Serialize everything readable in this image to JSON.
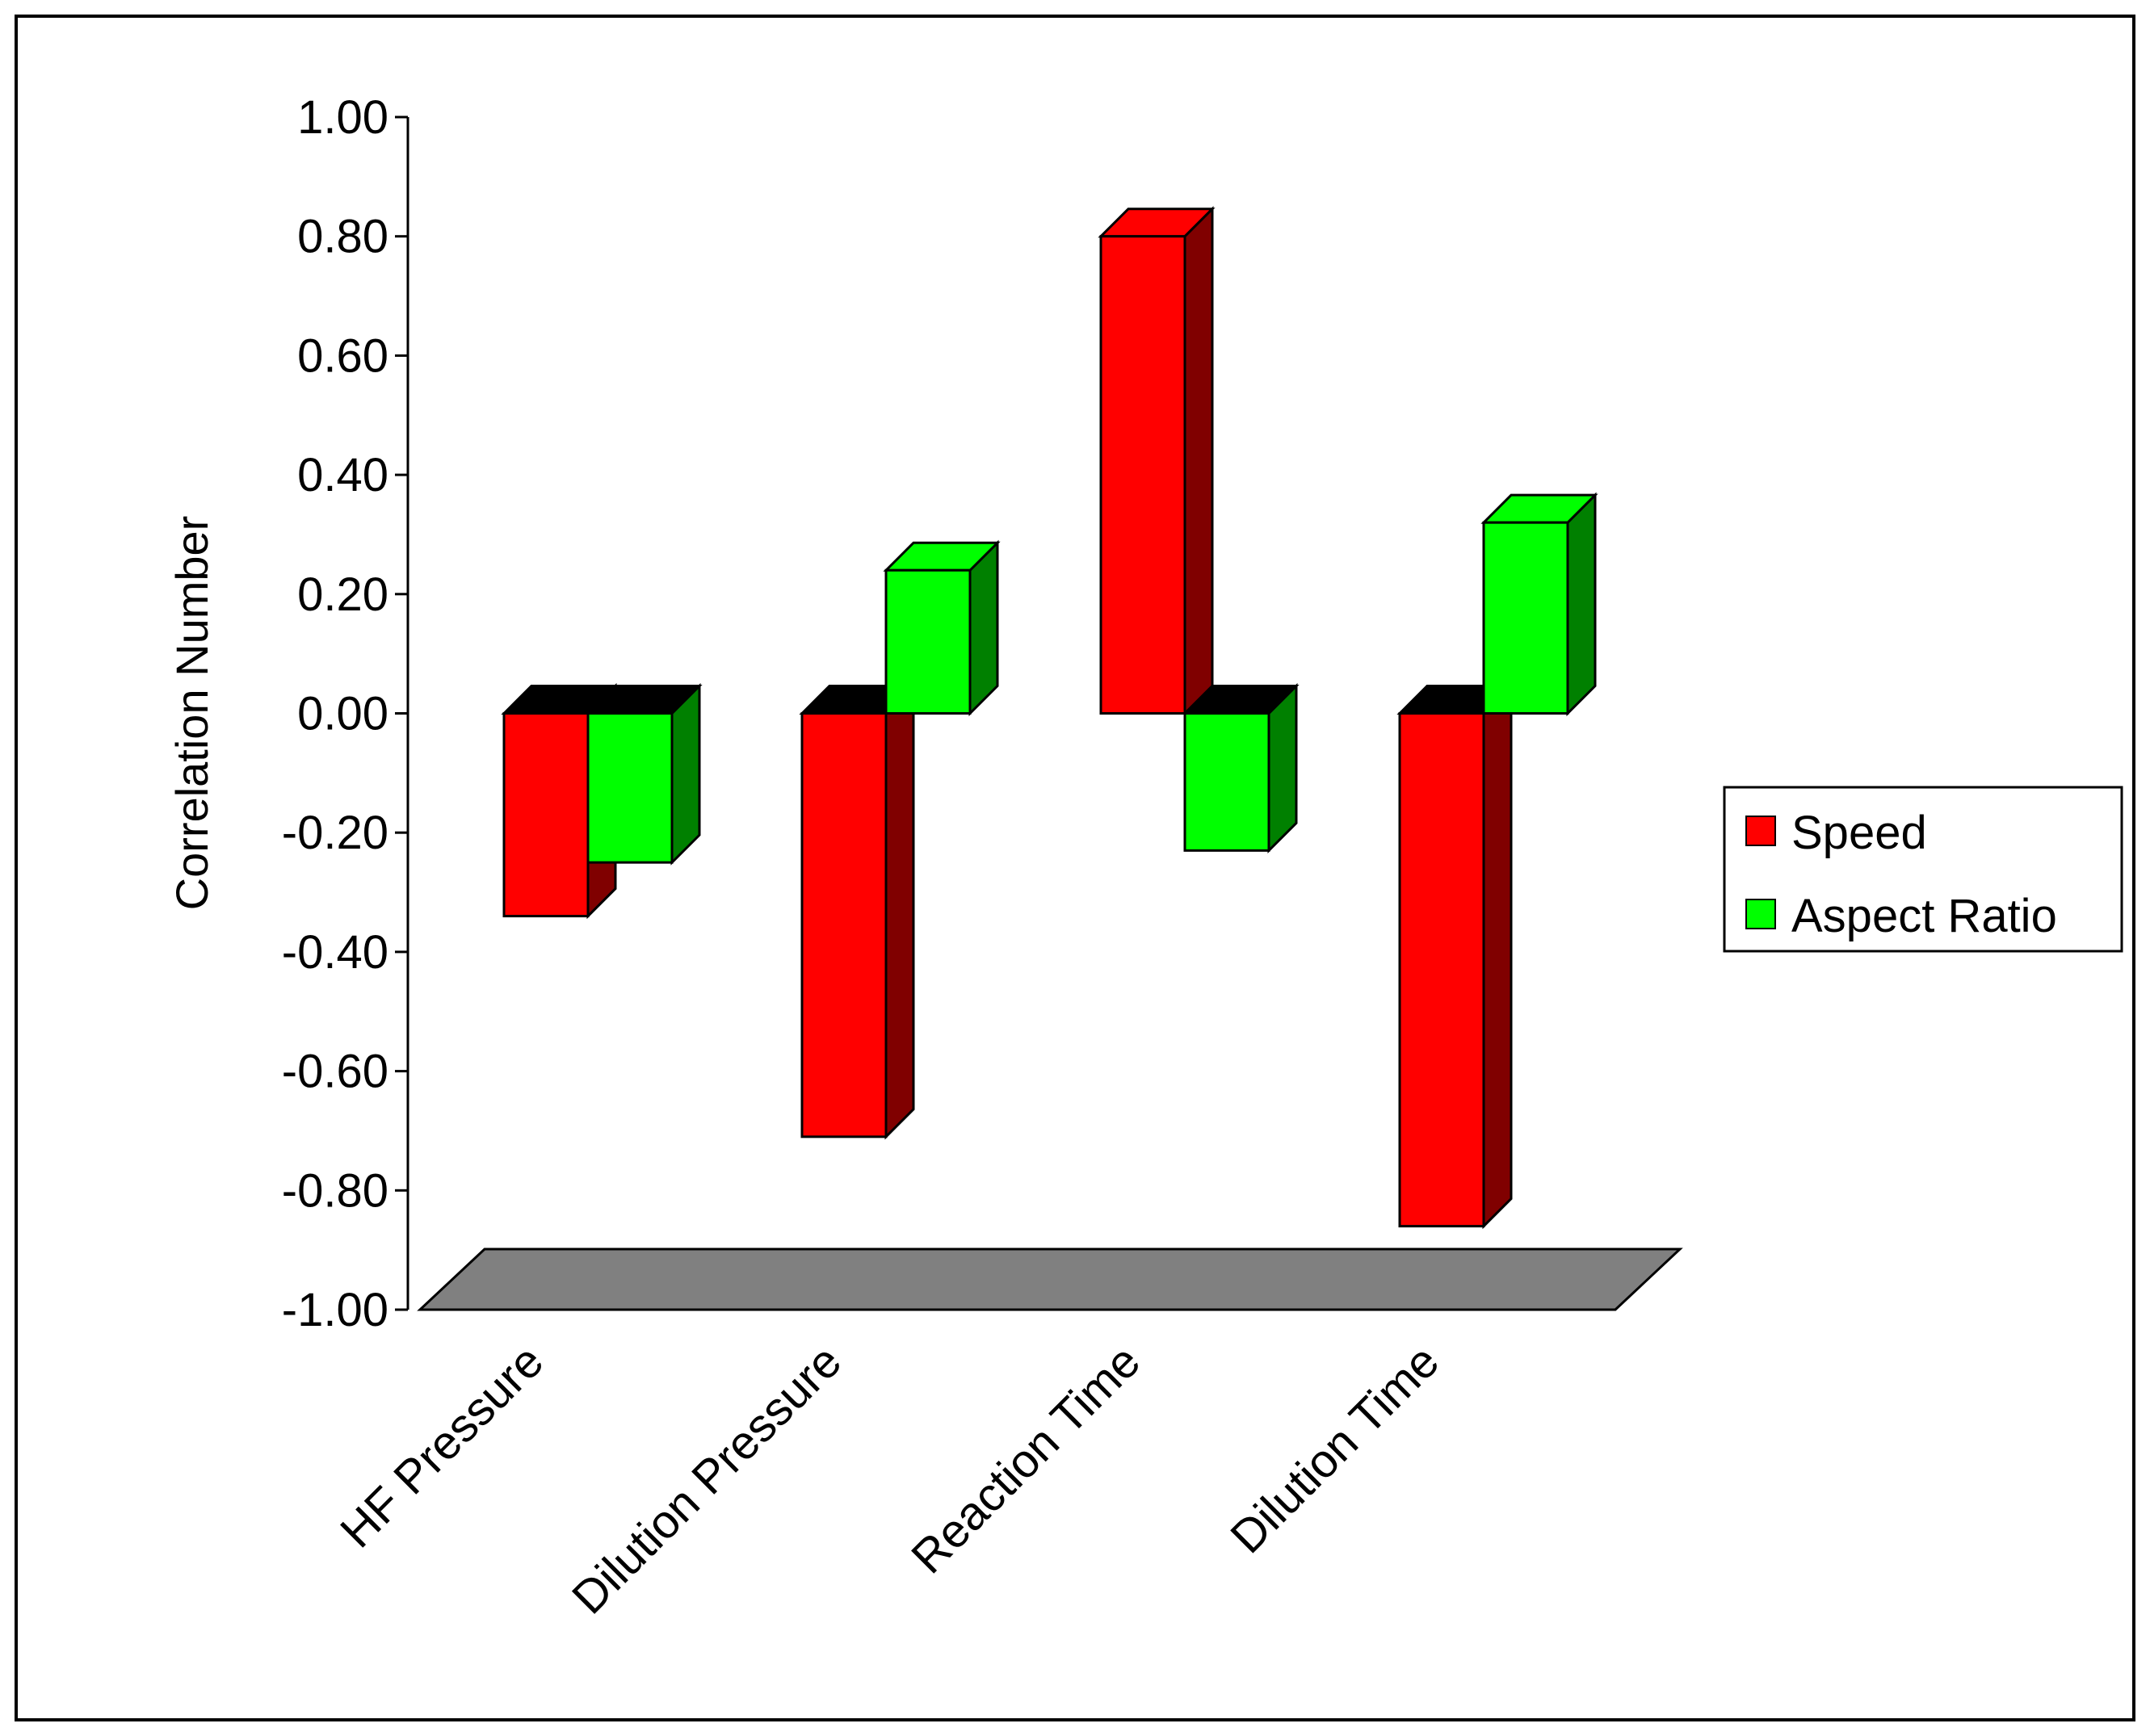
{
  "chart_data": {
    "type": "bar",
    "style": "3d-clustered",
    "title": "",
    "xlabel": "",
    "ylabel": "Correlation Number",
    "ylim": [
      -1.0,
      1.0
    ],
    "yticks": [
      1.0,
      0.8,
      0.6,
      0.4,
      0.2,
      0.0,
      -0.2,
      -0.4,
      -0.6,
      -0.8,
      -1.0
    ],
    "ytick_labels": [
      "1.00",
      "0.80",
      "0.60",
      "0.40",
      "0.20",
      "0.00",
      "-0.20",
      "-0.40",
      "-0.60",
      "-0.80",
      "-1.00"
    ],
    "categories": [
      "HF Pressure",
      "Dilution Pressure",
      "Reaction Time",
      "Dilution Time"
    ],
    "series": [
      {
        "name": "Speed",
        "values": [
          -0.34,
          -0.71,
          0.8,
          -0.86
        ],
        "color": "#ff0000",
        "side_color": "#800000"
      },
      {
        "name": "Aspect Ratio",
        "values": [
          -0.25,
          0.24,
          -0.23,
          0.32
        ],
        "color": "#00ff00",
        "side_color": "#008000"
      }
    ],
    "legend_position": "right",
    "floor_color": "#808080",
    "negative_top_color": "#000000"
  }
}
